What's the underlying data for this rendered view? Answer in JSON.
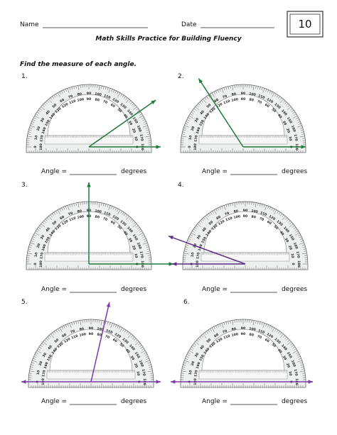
{
  "header": {
    "name_label": "Name",
    "date_label": "Date",
    "page_number": "10",
    "title": "Math Skills Practice for Building Fluency"
  },
  "instructions": "Find the measure of each angle.",
  "protractor_scale": [
    0,
    10,
    20,
    30,
    40,
    50,
    60,
    70,
    80,
    90,
    100,
    110,
    120,
    130,
    140,
    150,
    160,
    170,
    180
  ],
  "problems": [
    {
      "number": "1.",
      "answer_label": "Angle =",
      "unit": "degrees"
    },
    {
      "number": "2.",
      "answer_label": "Angle =",
      "unit": "degrees"
    },
    {
      "number": "3.",
      "answer_label": "Angle =",
      "unit": "degrees"
    },
    {
      "number": "4.",
      "answer_label": "Angle =",
      "unit": "degrees"
    },
    {
      "number": "5.",
      "answer_label": "Angle =",
      "unit": "degrees"
    },
    {
      "number": "6.",
      "answer_label": "Angle =",
      "unit": "degrees"
    }
  ]
}
